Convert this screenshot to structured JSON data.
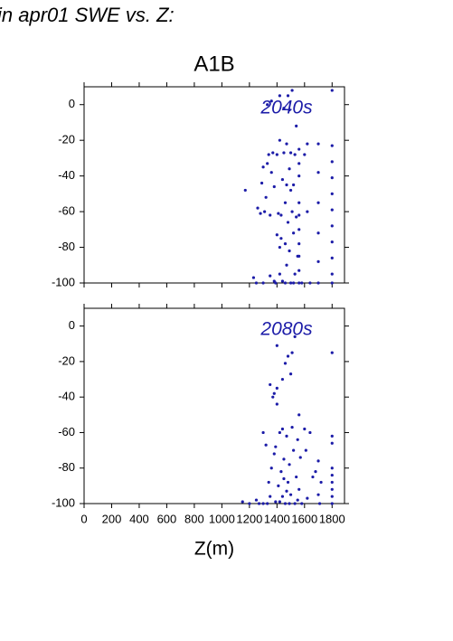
{
  "title": "in apr01 SWE vs. Z:",
  "chart_data": [
    {
      "type": "scatter",
      "title": "A1B",
      "annotation": "2040s",
      "color": "#1c1ca8",
      "xlim": [
        0,
        1890
      ],
      "ylim": [
        -100,
        10
      ],
      "xticks": [
        0,
        200,
        400,
        600,
        800,
        1000,
        1200,
        1400,
        1600,
        1800
      ],
      "xtick_labels": false,
      "yticks": [
        -100,
        -80,
        -60,
        -40,
        -20,
        0
      ],
      "x": [
        1170,
        1230,
        1250,
        1260,
        1280,
        1290,
        1300,
        1310,
        1320,
        1330,
        1340,
        1350,
        1360,
        1370,
        1380,
        1390,
        1400,
        1400,
        1410,
        1420,
        1420,
        1430,
        1440,
        1440,
        1450,
        1460,
        1460,
        1470,
        1470,
        1480,
        1480,
        1490,
        1490,
        1500,
        1500,
        1510,
        1510,
        1520,
        1520,
        1530,
        1530,
        1540,
        1540,
        1550,
        1560,
        1560,
        1560,
        1560,
        1560,
        1560,
        1560,
        1560,
        1560,
        1560,
        1580,
        1600,
        1620,
        1620,
        1640,
        1700,
        1700,
        1700,
        1700,
        1700,
        1700,
        1800,
        1800,
        1800,
        1800,
        1800,
        1800,
        1800,
        1800,
        1800,
        1800,
        1800,
        1330,
        1360,
        1420,
        1450,
        1380,
        1300,
        1350,
        1460,
        1520,
        1420,
        1470,
        1500,
        1430,
        1490
      ],
      "y": [
        -48,
        -97,
        -100,
        -58,
        -61,
        -44,
        -35,
        -60,
        -52,
        -33,
        -28,
        -62,
        -38,
        -27,
        -46,
        -100,
        -73,
        -28,
        -61,
        -80,
        -20,
        -75,
        -99,
        -42,
        -27,
        -78,
        -55,
        -90,
        -22,
        -66,
        5,
        -36,
        -82,
        -27,
        -100,
        -60,
        8,
        -45,
        -72,
        -28,
        -95,
        -63,
        -12,
        -85,
        -25,
        -40,
        -55,
        -70,
        -85,
        -100,
        -33,
        -62,
        -78,
        -93,
        -100,
        -28,
        -22,
        -60,
        -100,
        -22,
        -38,
        -55,
        -72,
        -88,
        -100,
        -23,
        -32,
        -41,
        -50,
        -59,
        -68,
        -77,
        -86,
        -95,
        -100,
        8,
        0,
        2,
        5,
        -2,
        -99,
        -100,
        -96,
        -100,
        -100,
        -95,
        -45,
        -48,
        -62,
        -3
      ]
    },
    {
      "type": "scatter",
      "annotation": "2080s",
      "color": "#1c1ca8",
      "xlabel": "Z(m)",
      "xlim": [
        0,
        1890
      ],
      "ylim": [
        -100,
        10
      ],
      "xticks": [
        0,
        200,
        400,
        600,
        800,
        1000,
        1200,
        1400,
        1600,
        1800
      ],
      "xtick_labels": true,
      "yticks": [
        -100,
        -80,
        -60,
        -40,
        -20,
        0
      ],
      "x": [
        1150,
        1200,
        1250,
        1300,
        1300,
        1320,
        1340,
        1350,
        1360,
        1370,
        1380,
        1390,
        1400,
        1400,
        1410,
        1420,
        1430,
        1440,
        1440,
        1450,
        1460,
        1460,
        1470,
        1480,
        1480,
        1490,
        1500,
        1500,
        1510,
        1510,
        1520,
        1530,
        1530,
        1540,
        1550,
        1560,
        1560,
        1570,
        1580,
        1600,
        1610,
        1620,
        1640,
        1660,
        1680,
        1700,
        1700,
        1710,
        1720,
        1800,
        1800,
        1800,
        1800,
        1800,
        1800,
        1800,
        1800,
        1800,
        1350,
        1390,
        1420,
        1450,
        1470,
        1490,
        1440,
        1400,
        1380,
        1330,
        1270,
        1550
      ],
      "y": [
        -99,
        -100,
        -98,
        -100,
        -60,
        -67,
        -88,
        -33,
        -80,
        -40,
        -72,
        -99,
        -11,
        -35,
        -90,
        -60,
        -82,
        -30,
        -96,
        -75,
        -21,
        -100,
        -62,
        -88,
        -17,
        -78,
        -27,
        -95,
        -57,
        -15,
        -70,
        -100,
        -6,
        -85,
        -64,
        -50,
        -92,
        -74,
        -100,
        -58,
        -70,
        -97,
        -60,
        -85,
        -82,
        -76,
        -95,
        -100,
        -88,
        -15,
        -62,
        -66,
        -80,
        -84,
        -88,
        -92,
        -96,
        -100,
        -96,
        -68,
        -99,
        -86,
        -93,
        -100,
        -58,
        -44,
        -38,
        -100,
        -100,
        -98
      ]
    }
  ]
}
